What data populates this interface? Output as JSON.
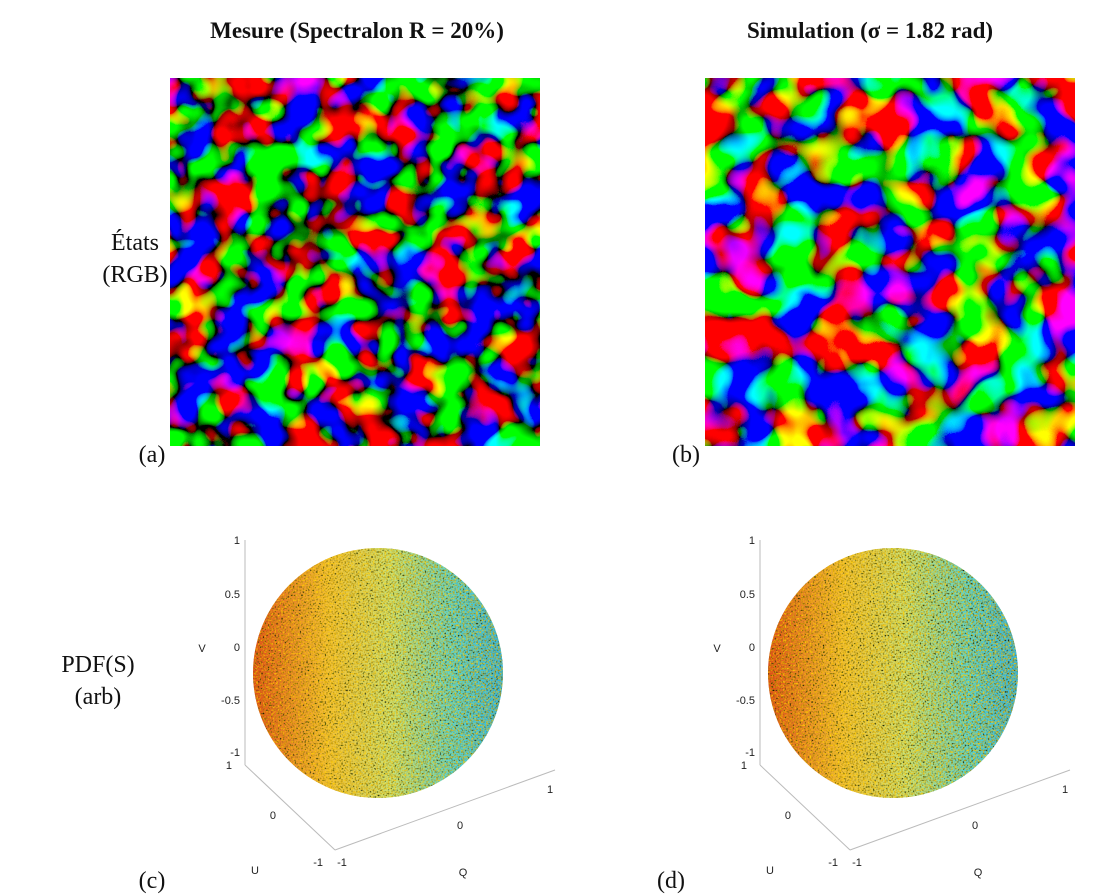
{
  "columns": [
    {
      "title": "Mesure (Spectralon R = 20%)"
    },
    {
      "title": "Simulation (σ = 1.82 rad)"
    }
  ],
  "rows": [
    {
      "label": [
        "États",
        "(RGB)"
      ]
    },
    {
      "label": [
        "PDF(S)",
        "(arb)"
      ]
    }
  ],
  "panels": [
    {
      "label": "(a)"
    },
    {
      "label": "(b)"
    },
    {
      "label": "(c)",
      "axes": {
        "v_label": "V",
        "v_ticks": [
          "1",
          "0.5",
          "0",
          "-0.5",
          "-1"
        ],
        "u_label": "U",
        "u_ticks": [
          "1",
          "0",
          "-1"
        ],
        "q_label": "Q",
        "q_ticks": [
          "-1",
          "0",
          "1"
        ]
      }
    },
    {
      "label": "(d)",
      "axes": {
        "v_label": "V",
        "v_ticks": [
          "1",
          "0.5",
          "0",
          "-0.5",
          "-1"
        ],
        "u_label": "U",
        "u_ticks": [
          "1",
          "0",
          "-1"
        ],
        "q_label": "Q",
        "q_ticks": [
          "-1",
          "0",
          "1"
        ]
      }
    }
  ]
}
